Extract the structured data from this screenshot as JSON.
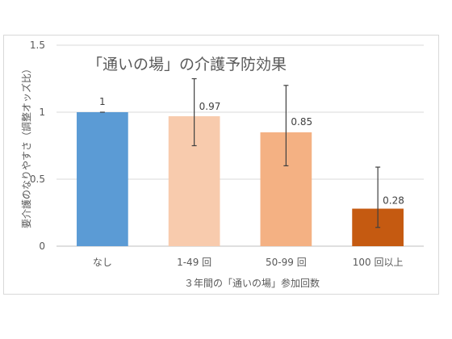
{
  "chart_data": {
    "type": "bar",
    "title": "「通いの場」の介護予防効果",
    "xlabel": "３年間の「通いの場」参加回数",
    "ylabel": "要介護のなりやすさ（調整オッズ比）",
    "categories": [
      "なし",
      "1-49 回",
      "50-99 回",
      "100 回以上"
    ],
    "values": [
      1,
      0.97,
      0.85,
      0.28
    ],
    "value_labels": [
      "1",
      "0.97",
      "0.85",
      "0.28"
    ],
    "error_low": [
      1,
      0.75,
      0.6,
      0.14
    ],
    "error_high": [
      1,
      1.25,
      1.2,
      0.59
    ],
    "ylim": [
      0,
      1.5
    ],
    "yticks": [
      0,
      0.5,
      1,
      1.5
    ],
    "ytick_labels": [
      "0",
      "0.5",
      "1",
      "1.5"
    ],
    "grid": true,
    "colors": [
      "#5b9bd5",
      "#f8cbad",
      "#f4b183",
      "#c55a11"
    ]
  }
}
